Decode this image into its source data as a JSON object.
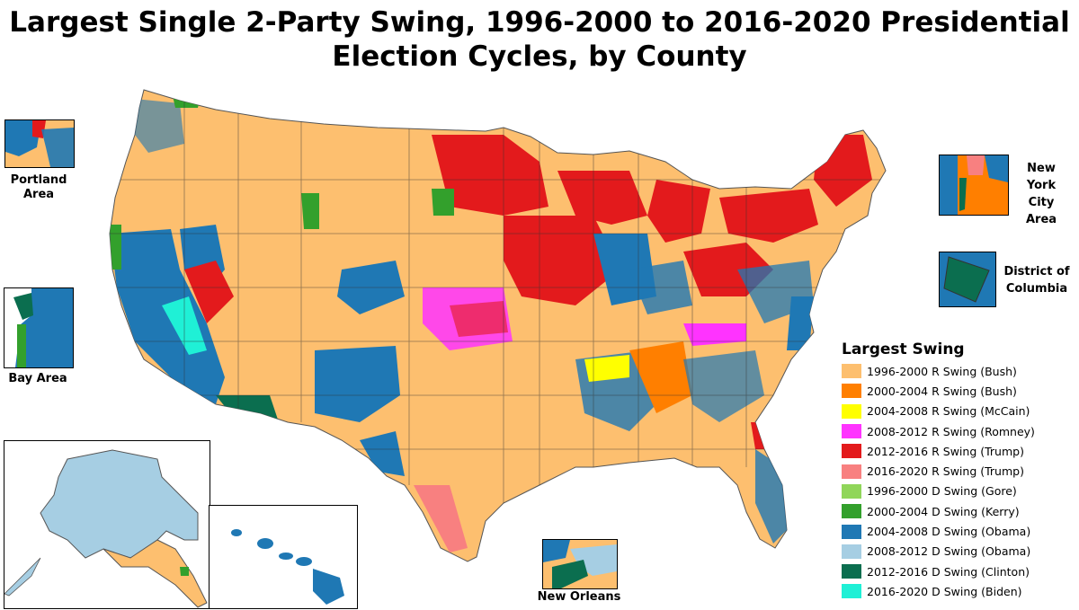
{
  "title": {
    "line1": "Largest Single 2-Party Swing, 1996-2000 to 2016-2020 Presidential",
    "line2": "Election Cycles, by County"
  },
  "insets": {
    "portland": "Portland Area",
    "bay": "Bay Area",
    "nyc": "New York City Area",
    "dc": "District of Columbia",
    "new_orleans": "New Orleans"
  },
  "legend": {
    "title": "Largest Swing",
    "items": [
      {
        "label": "1996-2000 R Swing (Bush)",
        "color": "#FDBF6F"
      },
      {
        "label": "2000-2004 R Swing (Bush)",
        "color": "#FF7F00"
      },
      {
        "label": "2004-2008 R Swing (McCain)",
        "color": "#FFFF00"
      },
      {
        "label": "2008-2012 R Swing (Romney)",
        "color": "#FF33FF"
      },
      {
        "label": "2012-2016 R Swing (Trump)",
        "color": "#E31A1C"
      },
      {
        "label": "2016-2020 R Swing (Trump)",
        "color": "#F88080"
      },
      {
        "label": "1996-2000 D Swing (Gore)",
        "color": "#90D65A"
      },
      {
        "label": "2000-2004 D Swing (Kerry)",
        "color": "#33A02C"
      },
      {
        "label": "2004-2008 D Swing (Obama)",
        "color": "#1F78B4"
      },
      {
        "label": "2008-2012 D Swing (Obama)",
        "color": "#A6CEE3"
      },
      {
        "label": "2012-2016 D Swing (Clinton)",
        "color": "#0B6E4F"
      },
      {
        "label": "2016-2020 D Swing (Biden)",
        "color": "#1FF0D6"
      }
    ]
  }
}
